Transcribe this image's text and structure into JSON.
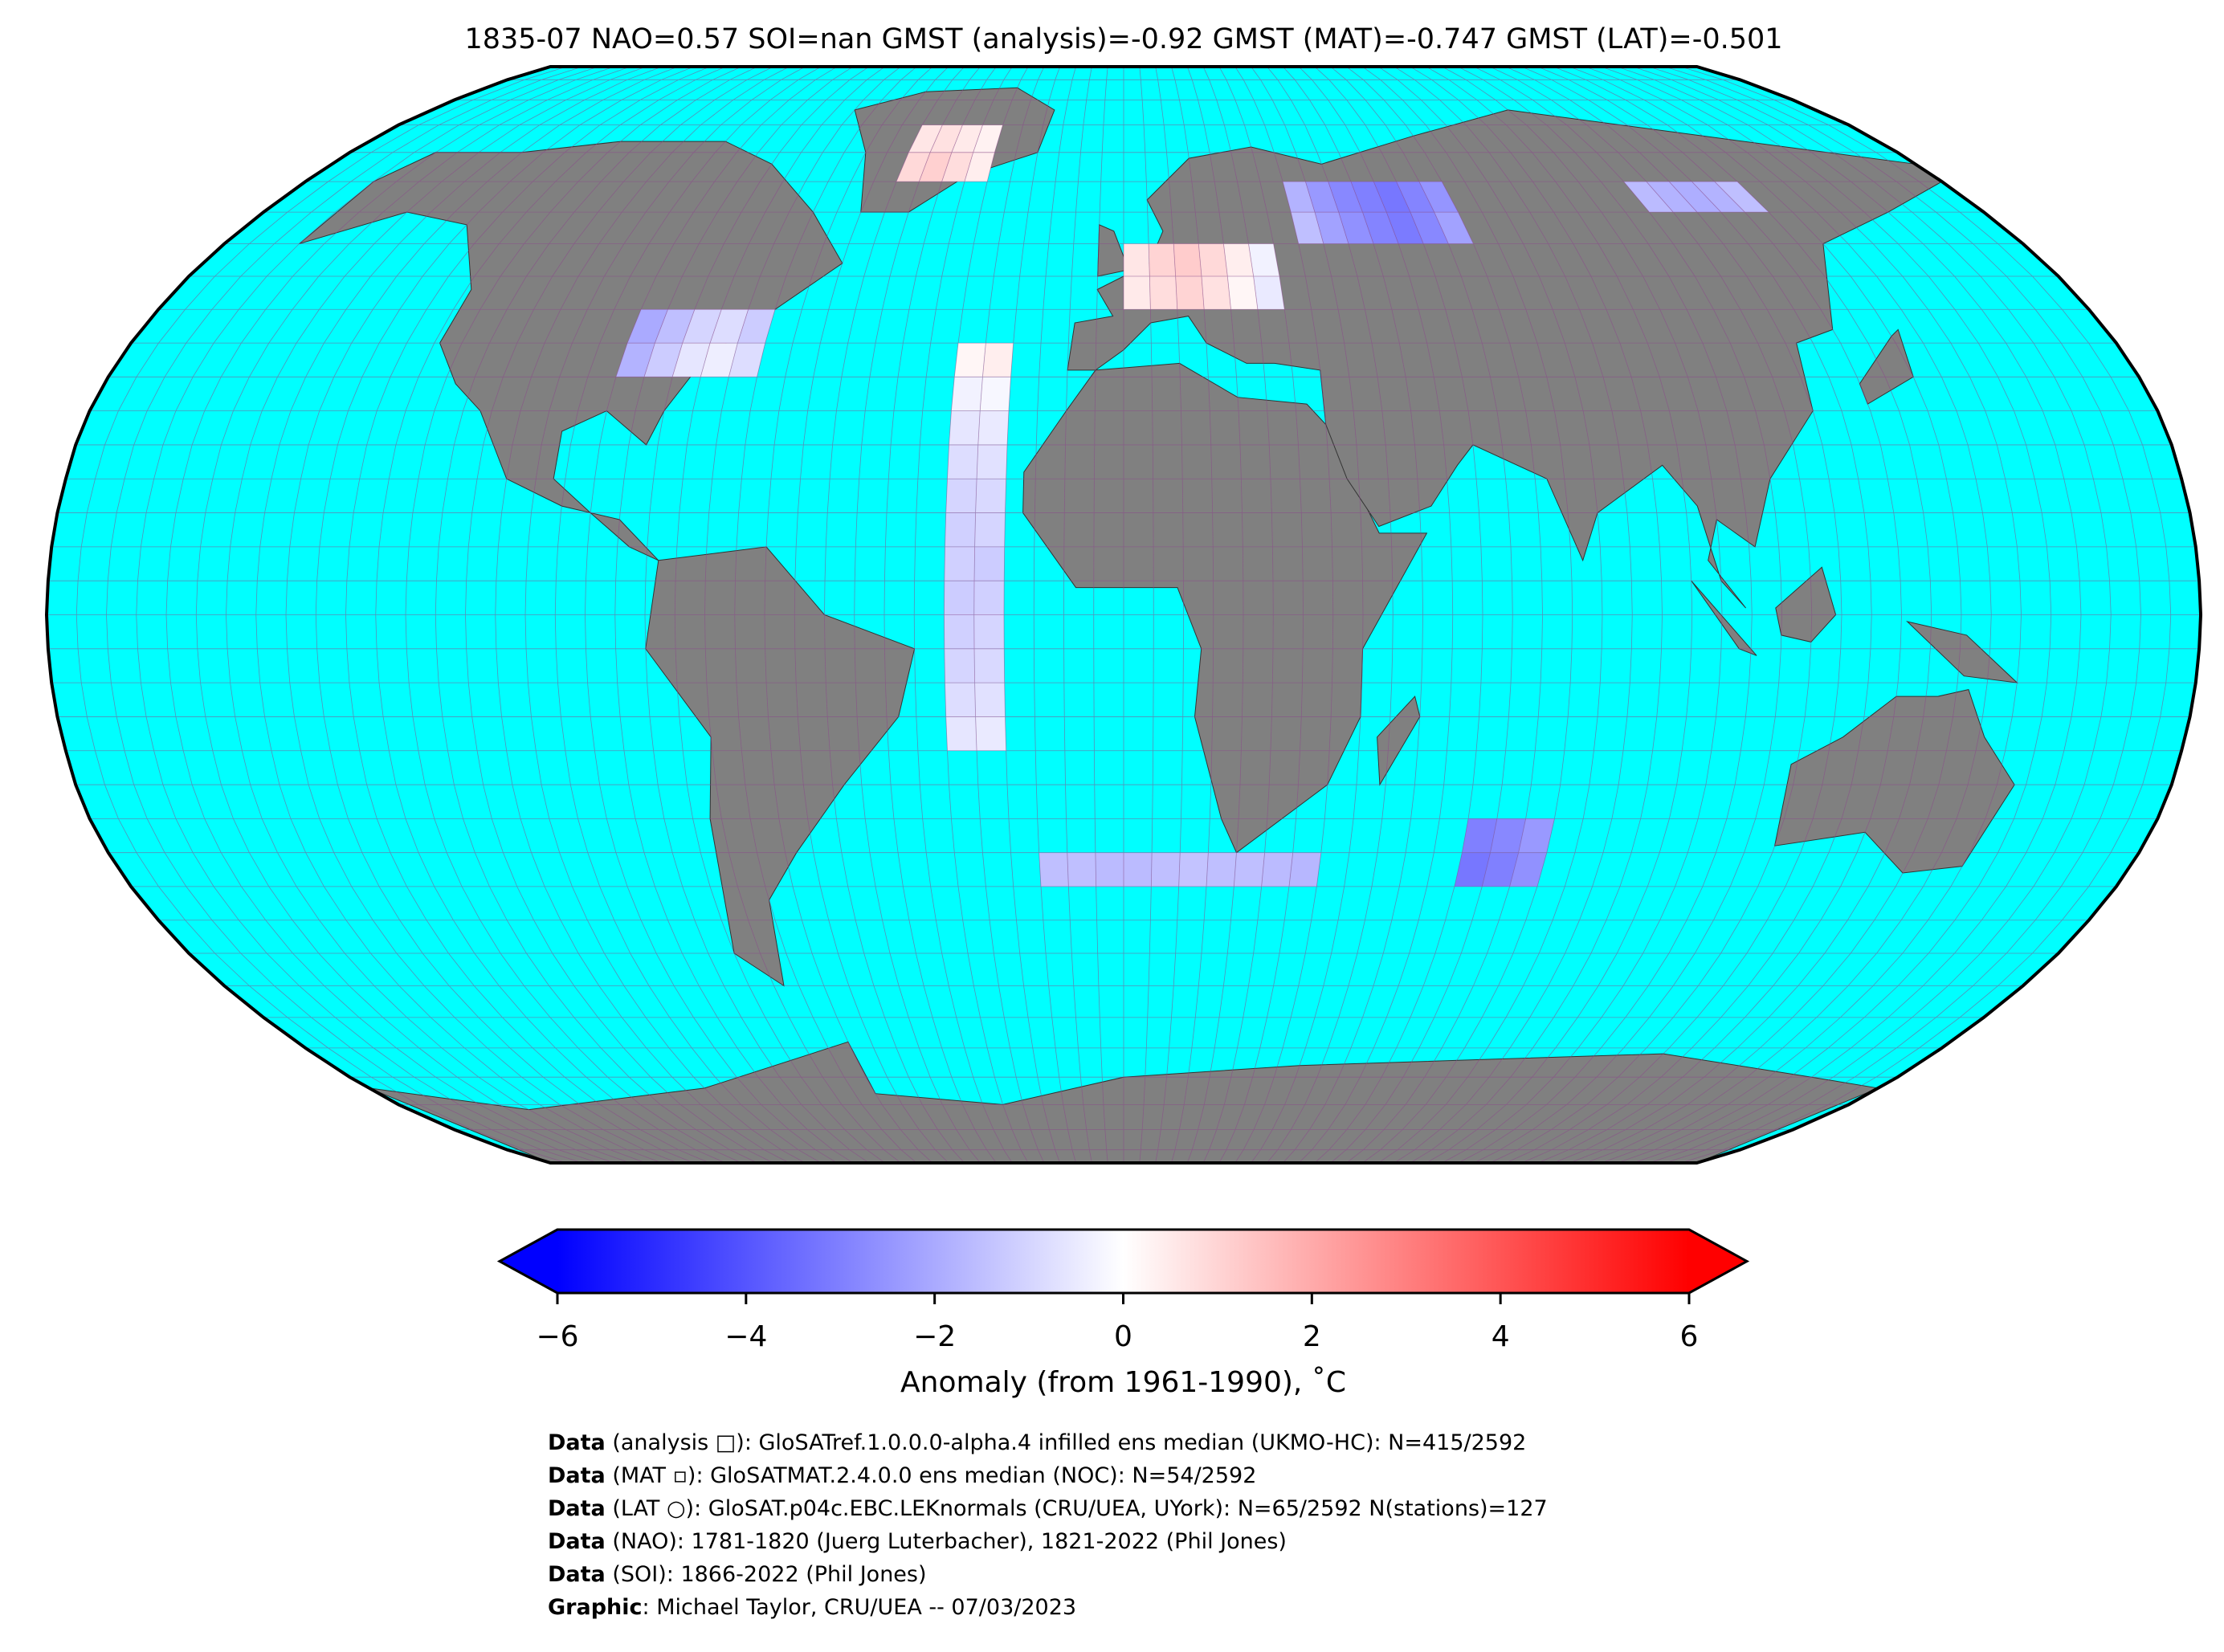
{
  "title": "1835-07 NAO=0.57 SOI=nan GMST (analysis)=-0.92 GMST (MAT)=-0.747 GMST (LAT)=-0.501",
  "chart_data": {
    "type": "map",
    "lon": [
      -27.5,
      -22.5,
      -27.5,
      -22.5,
      -27.5,
      -22.5,
      -27.5,
      -22.5,
      -27.5,
      -22.5,
      -27.5,
      -22.5,
      -27.5,
      -22.5,
      -27.5,
      -22.5,
      -27.5,
      -22.5,
      -27.5,
      -22.5,
      -27.5,
      -22.5,
      -27.5,
      -22.5,
      2.5,
      7.5,
      12.5,
      17.5,
      22.5,
      27.5,
      2.5,
      7.5,
      12.5,
      17.5,
      22.5,
      27.5,
      37.5,
      42.5,
      47.5,
      52.5,
      57.5,
      62.5,
      67.5,
      37.5,
      42.5,
      47.5,
      52.5,
      57.5,
      62.5,
      67.5,
      -87.5,
      -82.5,
      -77.5,
      -72.5,
      -67.5,
      -87.5,
      -82.5,
      -77.5,
      -72.5,
      -67.5,
      -47.5,
      -42.5,
      -37.5,
      -32.5,
      -47.5,
      -42.5,
      -37.5,
      -32.5,
      -12.5,
      -7.5,
      -2.5,
      2.5,
      7.5,
      12.5,
      17.5,
      22.5,
      27.5,
      32.5,
      62.5,
      67.5,
      72.5,
      62.5,
      67.5,
      72.5,
      112.5,
      117.5,
      122.5,
      127.5,
      132.5
    ],
    "lat": [
      37.5,
      37.5,
      32.5,
      32.5,
      27.5,
      27.5,
      22.5,
      22.5,
      17.5,
      17.5,
      12.5,
      12.5,
      7.5,
      7.5,
      2.5,
      2.5,
      -2.5,
      -2.5,
      -7.5,
      -7.5,
      -12.5,
      -12.5,
      -17.5,
      -17.5,
      52.5,
      52.5,
      52.5,
      52.5,
      52.5,
      52.5,
      47.5,
      47.5,
      47.5,
      47.5,
      47.5,
      47.5,
      62.5,
      62.5,
      62.5,
      62.5,
      62.5,
      62.5,
      62.5,
      57.5,
      57.5,
      57.5,
      57.5,
      57.5,
      57.5,
      57.5,
      42.5,
      42.5,
      42.5,
      42.5,
      42.5,
      37.5,
      37.5,
      37.5,
      37.5,
      37.5,
      72.5,
      72.5,
      72.5,
      72.5,
      67.5,
      67.5,
      67.5,
      67.5,
      -37.5,
      -37.5,
      -37.5,
      -37.5,
      -37.5,
      -37.5,
      -37.5,
      -37.5,
      -37.5,
      -37.5,
      -32.5,
      -32.5,
      -32.5,
      -37.5,
      -37.5,
      -37.5,
      62.5,
      62.5,
      62.5,
      62.5,
      62.5
    ],
    "values": [
      0.2,
      0.4,
      -0.3,
      -0.2,
      -0.6,
      -0.5,
      -0.8,
      -0.7,
      -1.0,
      -0.9,
      -1.1,
      -1.0,
      -1.1,
      -1.2,
      -1.2,
      -1.1,
      -1.1,
      -1.0,
      -1.0,
      -0.9,
      -0.8,
      -0.7,
      -0.6,
      -0.5,
      0.6,
      1.0,
      1.2,
      0.9,
      0.4,
      -0.3,
      0.5,
      0.8,
      1.0,
      0.7,
      0.2,
      -0.5,
      -1.8,
      -2.4,
      -2.8,
      -3.0,
      -3.2,
      -2.9,
      -2.5,
      -1.5,
      -2.2,
      -2.6,
      -2.9,
      -3.1,
      -2.8,
      -2.2,
      -2.0,
      -1.5,
      -1.0,
      -0.8,
      -1.2,
      -1.8,
      -1.2,
      -0.6,
      -0.4,
      -0.8,
      0.6,
      0.7,
      0.5,
      0.3,
      0.9,
      1.1,
      0.8,
      0.4,
      -1.5,
      -1.5,
      -1.6,
      -1.6,
      -1.5,
      -1.4,
      -1.5,
      -1.5,
      -1.6,
      -1.7,
      -3.0,
      -2.8,
      -2.4,
      -3.2,
      -3.0,
      -2.6,
      -1.6,
      -1.8,
      -1.9,
      -1.8,
      -1.5
    ],
    "colorbar": {
      "xlim": [
        -6,
        6
      ],
      "colors": [
        "#0000ff",
        "#ffffff",
        "#ff0000"
      ],
      "xticks": [
        {
          "value": -6,
          "label": "−6"
        },
        {
          "value": -4,
          "label": "−4"
        },
        {
          "value": -2,
          "label": "−2"
        },
        0,
        2,
        4,
        6
      ],
      "label": "Anomaly (from 1961-1990), ˚C"
    }
  },
  "credits": [
    [
      "Data",
      " (analysis □): GloSATref.1.0.0.0-alpha.4 infilled ens median (UKMO-HC): N=415/2592"
    ],
    [
      "Data",
      " (MAT ▫): GloSATMAT.2.4.0.0 ens median (NOC): N=54/2592"
    ],
    [
      "Data",
      " (LAT ○): GloSAT.p04c.EBC.LEKnormals (CRU/UEA, UYork): N=65/2592 N(stations)=127"
    ],
    [
      "Data",
      " (NAO): 1781-1820 (Juerg Luterbacher), 1821-2022 (Phil Jones)"
    ],
    [
      "Data",
      " (SOI): 1866-2022 (Phil Jones)"
    ],
    [
      "Graphic",
      ": Michael Taylor, CRU/UEA -- 07/03/2023"
    ]
  ]
}
